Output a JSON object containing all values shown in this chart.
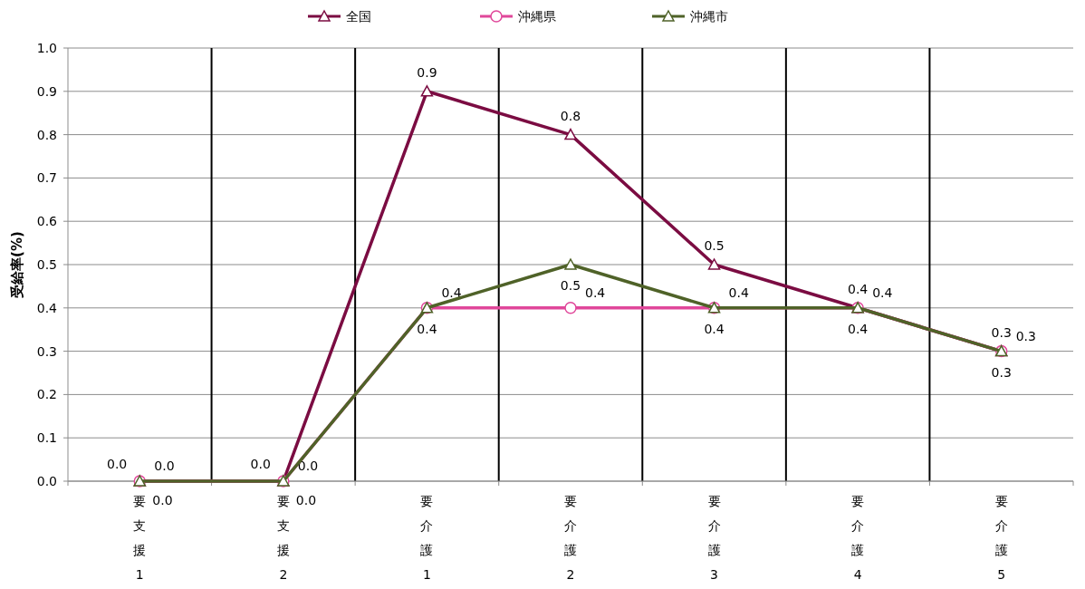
{
  "chart_data": {
    "type": "line",
    "ylabel": "受給率(%)",
    "categories": [
      "要支援1",
      "要支援2",
      "要介護1",
      "要介護2",
      "要介護3",
      "要介護4",
      "要介護5"
    ],
    "series": [
      {
        "name": "全国",
        "color": "#7b0c42",
        "marker": "triangle",
        "values": [
          0,
          0,
          0.9,
          0.8,
          0.5,
          0.4,
          0.3
        ],
        "value_labels": [
          "0.0",
          "0.0",
          "0.9",
          "0.8",
          "0.5",
          "0.4",
          "0.3"
        ]
      },
      {
        "name": "沖縄県",
        "color": "#e0479a",
        "marker": "circle",
        "values": [
          0,
          0,
          0.4,
          0.4,
          0.4,
          0.4,
          0.3
        ],
        "value_labels": [
          "0.0",
          "0.0",
          "0.4",
          "0.4",
          "0.4",
          "0.4",
          "0.3"
        ]
      },
      {
        "name": "沖縄市",
        "color": "#4f6228",
        "marker": "triangle",
        "values": [
          0,
          0,
          0.4,
          0.5,
          0.4,
          0.4,
          0.3
        ],
        "value_labels": [
          "0.0",
          "0.0",
          "0.4",
          "0.5",
          "0.4",
          "0.4",
          "0.3"
        ]
      }
    ],
    "ylim": [
      0,
      1
    ],
    "yticks": [
      {
        "value": 0,
        "label": "0.0"
      },
      {
        "value": 0.1,
        "label": "0.1"
      },
      {
        "value": 0.2,
        "label": "0.2"
      },
      {
        "value": 0.3,
        "label": "0.3"
      },
      {
        "value": 0.4,
        "label": "0.4"
      },
      {
        "value": 0.5,
        "label": "0.5"
      },
      {
        "value": 0.6,
        "label": "0.6"
      },
      {
        "value": 0.7,
        "label": "0.7"
      },
      {
        "value": 0.8,
        "label": "0.8"
      },
      {
        "value": 0.9,
        "label": "0.9"
      },
      {
        "value": 1,
        "label": "1.0"
      }
    ],
    "grid": true,
    "legend": "top",
    "line_style": "solid"
  }
}
